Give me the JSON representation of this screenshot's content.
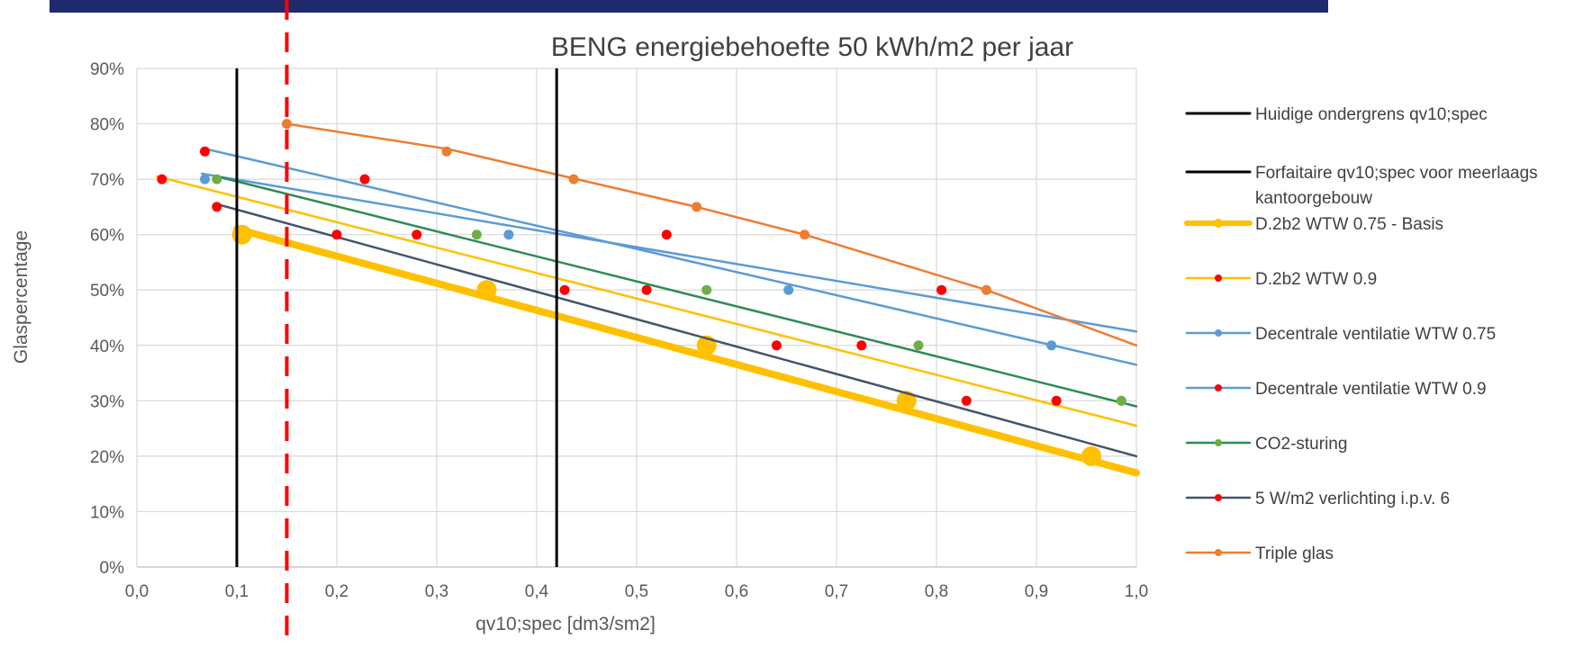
{
  "slide_header_text": "",
  "chart_data": {
    "type": "line",
    "title": "BENG energiebehoefte 50 kWh/m2 per jaar",
    "xlabel": "qv10;spec [dm3/sm2]",
    "ylabel": "Glaspercentage",
    "xlim": [
      0,
      1.0
    ],
    "ylim": [
      0,
      90
    ],
    "x_ticks": [
      "0,0",
      "0,1",
      "0,2",
      "0,3",
      "0,4",
      "0,5",
      "0,6",
      "0,7",
      "0,8",
      "0,9",
      "1,0"
    ],
    "y_ticks": [
      "0%",
      "10%",
      "20%",
      "30%",
      "40%",
      "50%",
      "60%",
      "70%",
      "80%",
      "90%"
    ],
    "grid": true,
    "legend_position": "right",
    "annotation_lines": [
      {
        "name": "Huidige ondergrens qv10;spec",
        "x": 0.1,
        "color": "#000000",
        "style": "solid"
      },
      {
        "name": "Forfaitaire qv10;spec voor meerlaags kantoorgebouw",
        "x": 0.42,
        "color": "#000000",
        "style": "solid"
      },
      {
        "name": "",
        "x": 0.15,
        "color": "#ff0000",
        "style": "dashed"
      }
    ],
    "series": [
      {
        "name": "D.2b2 WTW 0.75 - Basis",
        "color": "#ffc000",
        "width": 8,
        "marker_color": "#ffc000",
        "marker_size": 11,
        "line": [
          [
            0.1,
            61
          ],
          [
            1.0,
            17
          ]
        ],
        "points": [
          [
            0.105,
            60
          ],
          [
            0.35,
            50
          ],
          [
            0.57,
            40
          ],
          [
            0.77,
            30
          ],
          [
            0.955,
            20
          ]
        ]
      },
      {
        "name": "D.2b2 WTW 0.9",
        "color": "#ffc000",
        "width": 2.5,
        "marker_color": "#ff0000",
        "marker_size": 5.5,
        "line": [
          [
            0.02,
            70.5
          ],
          [
            1.0,
            25.5
          ]
        ],
        "points": [
          [
            0.025,
            70
          ],
          [
            0.28,
            60
          ],
          [
            0.51,
            50
          ],
          [
            0.725,
            40
          ],
          [
            0.92,
            30
          ]
        ]
      },
      {
        "name": "Decentrale ventilatie WTW 0.75",
        "color": "#5b9bd5",
        "width": 2.5,
        "marker_color": "#5b9bd5",
        "marker_size": 5.5,
        "line": [
          [
            0.065,
            71
          ],
          [
            1.0,
            42.5
          ]
        ],
        "points": [
          [
            0.068,
            70
          ],
          [
            0.372,
            60
          ],
          [
            0.652,
            50
          ],
          [
            0.915,
            40
          ]
        ]
      },
      {
        "name": "Decentrale ventilatie WTW 0.9",
        "color": "#5b9bd5",
        "width": 2.5,
        "marker_color": "#ff0000",
        "marker_size": 5.5,
        "line": [
          [
            0.068,
            75.5
          ],
          [
            1.0,
            36.5
          ]
        ],
        "points": [
          [
            0.068,
            75
          ],
          [
            0.228,
            70
          ],
          [
            0.53,
            60
          ],
          [
            0.805,
            50
          ]
        ]
      },
      {
        "name": "CO2-sturing",
        "color": "#2e8b57",
        "width": 2.5,
        "marker_color": "#70ad47",
        "marker_size": 5.5,
        "line": [
          [
            0.08,
            70.5
          ],
          [
            1.0,
            29
          ]
        ],
        "points": [
          [
            0.08,
            70
          ],
          [
            0.34,
            60
          ],
          [
            0.57,
            50
          ],
          [
            0.782,
            40
          ],
          [
            0.985,
            30
          ]
        ]
      },
      {
        "name": "5 W/m2 verlichting i.p.v. 6",
        "color": "#44546a",
        "width": 2.5,
        "marker_color": "#ff0000",
        "marker_size": 5.5,
        "line": [
          [
            0.08,
            65.5
          ],
          [
            1.0,
            20
          ]
        ],
        "points": [
          [
            0.08,
            65
          ],
          [
            0.2,
            60
          ],
          [
            0.428,
            50
          ],
          [
            0.64,
            40
          ],
          [
            0.83,
            30
          ]
        ]
      },
      {
        "name": "Triple glas",
        "color": "#ed7d31",
        "width": 2.5,
        "marker_color": "#ed7d31",
        "marker_size": 5.5,
        "line": [
          [
            0.15,
            80
          ],
          [
            0.31,
            75.5
          ],
          [
            0.44,
            70
          ],
          [
            0.56,
            65
          ],
          [
            0.668,
            60
          ],
          [
            0.85,
            50
          ],
          [
            1.0,
            40
          ]
        ],
        "points": [
          [
            0.15,
            80
          ],
          [
            0.31,
            75
          ],
          [
            0.437,
            70
          ],
          [
            0.56,
            65
          ],
          [
            0.668,
            60
          ],
          [
            0.85,
            50
          ]
        ]
      }
    ],
    "legend": [
      {
        "label": "Huidige ondergrens qv10;spec",
        "color": "#000000",
        "width": 3,
        "marker": false
      },
      {
        "label": "Forfaitaire qv10;spec voor meerlaags",
        "label2": "kantoorgebouw",
        "color": "#000000",
        "width": 3,
        "marker": false
      },
      {
        "label": "D.2b2 WTW 0.75 - Basis",
        "color": "#ffc000",
        "width": 6,
        "marker": true,
        "marker_color": "#ffc000",
        "marker_r": 5
      },
      {
        "label": "D.2b2 WTW 0.9",
        "color": "#ffc000",
        "width": 2.5,
        "marker": true,
        "marker_color": "#ff0000",
        "marker_r": 4
      },
      {
        "label": "Decentrale ventilatie WTW 0.75",
        "color": "#5b9bd5",
        "width": 2.5,
        "marker": true,
        "marker_color": "#5b9bd5",
        "marker_r": 4
      },
      {
        "label": "Decentrale ventilatie WTW 0.9",
        "color": "#5b9bd5",
        "width": 2.5,
        "marker": true,
        "marker_color": "#ff0000",
        "marker_r": 4
      },
      {
        "label": "CO2-sturing",
        "color": "#2e8b57",
        "width": 2.5,
        "marker": true,
        "marker_color": "#70ad47",
        "marker_r": 4
      },
      {
        "label": "5 W/m2 verlichting i.p.v. 6",
        "color": "#44546a",
        "width": 2.5,
        "marker": true,
        "marker_color": "#ff0000",
        "marker_r": 4
      },
      {
        "label": "Triple glas",
        "color": "#ed7d31",
        "width": 2.5,
        "marker": true,
        "marker_color": "#ed7d31",
        "marker_r": 4
      }
    ]
  }
}
